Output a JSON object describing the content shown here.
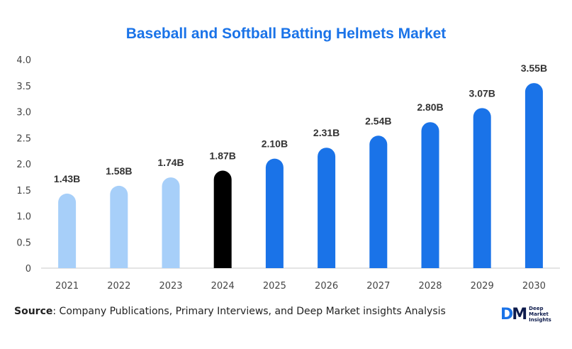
{
  "chart_data": {
    "type": "bar",
    "title": "Baseball and Softball Batting Helmets Market",
    "categories": [
      "2021",
      "2022",
      "2023",
      "2024",
      "2025",
      "2026",
      "2027",
      "2028",
      "2029",
      "2030"
    ],
    "values": [
      1.43,
      1.58,
      1.74,
      1.87,
      2.1,
      2.31,
      2.54,
      2.8,
      3.07,
      3.55
    ],
    "data_labels": [
      "1.43B",
      "1.58B",
      "1.74B",
      "1.87B",
      "2.10B",
      "2.31B",
      "2.54B",
      "2.80B",
      "3.07B",
      "3.55B"
    ],
    "bar_colors": [
      "#a7cff9",
      "#a7cff9",
      "#a7cff9",
      "#000000",
      "#1a73e8",
      "#1a73e8",
      "#1a73e8",
      "#1a73e8",
      "#1a73e8",
      "#1a73e8"
    ],
    "yticks": [
      "0",
      "0.5",
      "1.0",
      "1.5",
      "2.0",
      "2.5",
      "3.0",
      "3.5",
      "4.0"
    ],
    "ylim": [
      0,
      4.0
    ],
    "xlabel": "",
    "ylabel": "",
    "grid": false,
    "legend": "none"
  },
  "footer": {
    "source_label": "Source",
    "source_text": ": Company Publications, Primary Interviews, and Deep Market insights Analysis"
  },
  "logo": {
    "mark_d": "D",
    "mark_m": "M",
    "line1": "Deep",
    "line2": "Market",
    "line3": "Insights"
  },
  "colors": {
    "title": "#1a73e8",
    "historic": "#a7cff9",
    "base_year": "#000000",
    "forecast": "#1a73e8"
  }
}
